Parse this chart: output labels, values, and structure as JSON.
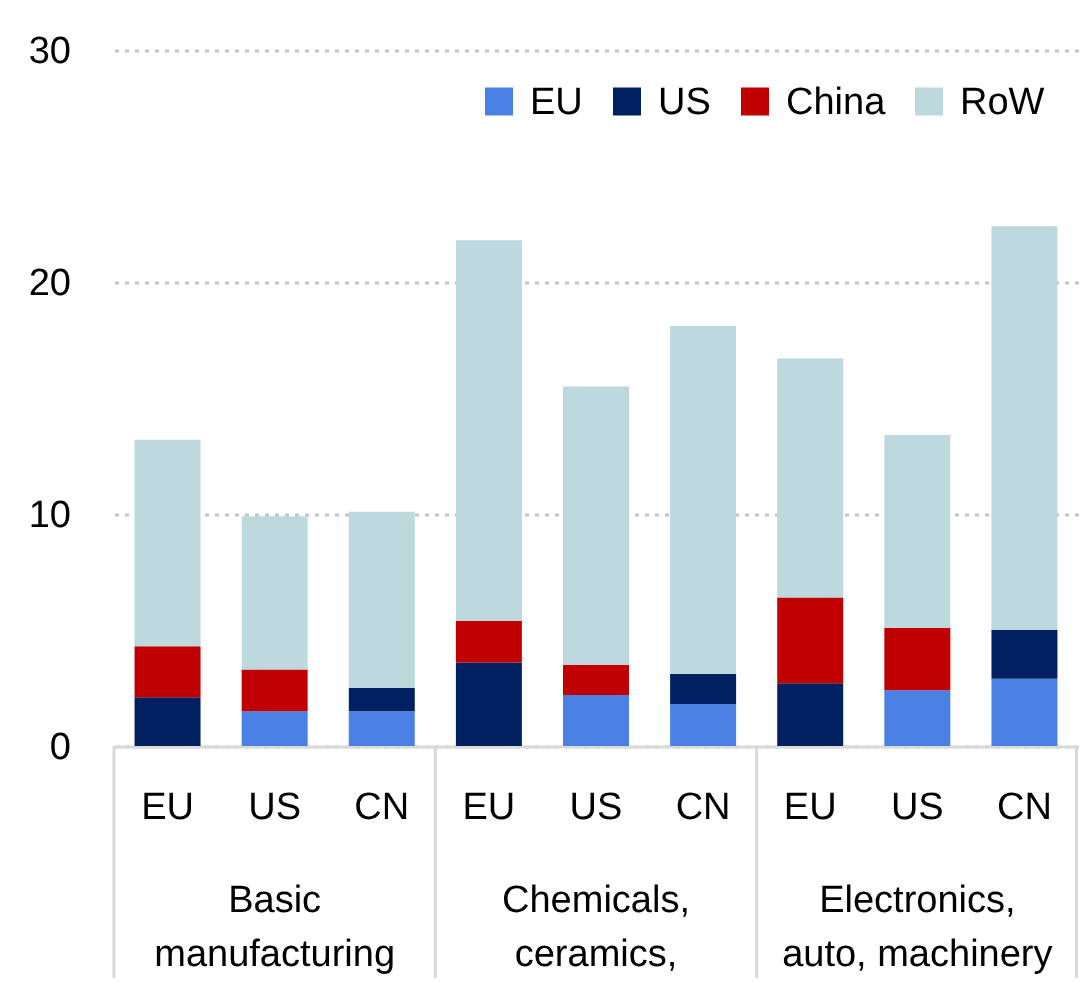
{
  "chart_data": {
    "type": "bar",
    "stacked": true,
    "categories": [
      "EU",
      "US",
      "CN",
      "EU",
      "US",
      "CN",
      "EU",
      "US",
      "CN"
    ],
    "series": [
      {
        "name": "EU",
        "color": "#4a80e3",
        "values": [
          null,
          1.5,
          1.5,
          null,
          2.2,
          1.8,
          null,
          2.4,
          2.9
        ]
      },
      {
        "name": "US",
        "color": "#002060",
        "values": [
          2.1,
          null,
          1.0,
          3.6,
          null,
          1.3,
          2.7,
          null,
          2.1
        ]
      },
      {
        "name": "China",
        "color": "#c00000",
        "values": [
          2.2,
          1.8,
          null,
          1.8,
          1.3,
          null,
          3.7,
          2.7,
          null
        ]
      },
      {
        "name": "RoW",
        "color": "#bdd9de",
        "values": [
          8.9,
          6.6,
          7.6,
          16.4,
          12.0,
          15.0,
          10.3,
          8.3,
          17.4
        ]
      }
    ],
    "ylim": [
      0,
      30
    ],
    "yticks": [
      0,
      10,
      20,
      30
    ],
    "grid": "y",
    "legend": "top right",
    "annotations": [
      "Basic manufacturing",
      "Chemicals, ceramics,",
      "Electronics, auto, machinery"
    ]
  }
}
